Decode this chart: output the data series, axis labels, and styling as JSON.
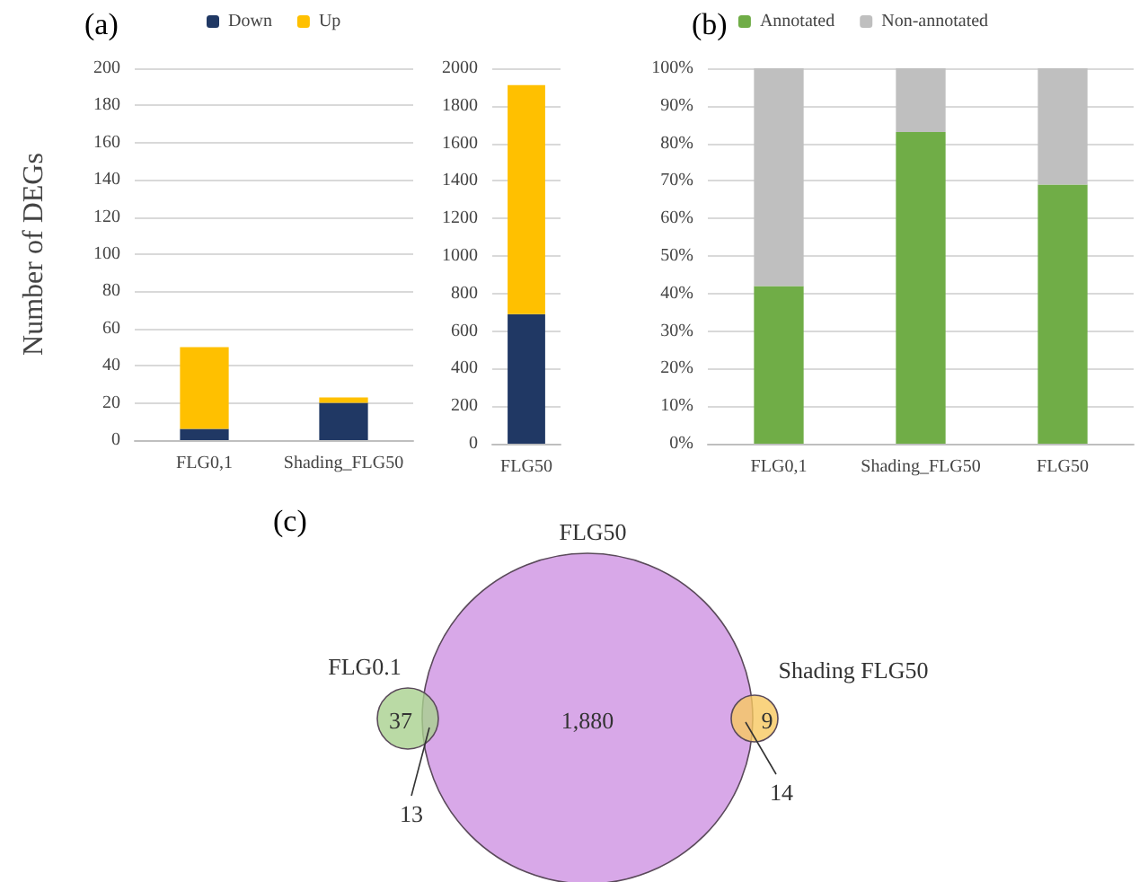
{
  "chart_data": [
    {
      "type": "bar",
      "title": "(a)",
      "ylabel": "Number of DEGs",
      "categories": [
        "FLG0,1",
        "Shading_FLG50"
      ],
      "stacked": true,
      "series": [
        {
          "name": "Down",
          "color": "#203864",
          "values": [
            6,
            20
          ]
        },
        {
          "name": "Up",
          "color": "#ffc000",
          "values": [
            44,
            3
          ]
        }
      ],
      "ylim": [
        0,
        200
      ],
      "yticks": [
        0,
        20,
        40,
        60,
        80,
        100,
        120,
        140,
        160,
        180,
        200
      ],
      "grid": "y",
      "legend": "top"
    },
    {
      "type": "bar",
      "categories": [
        "FLG50"
      ],
      "stacked": true,
      "series": [
        {
          "color": "#203864",
          "values": [
            690
          ]
        },
        {
          "color": "#ffc000",
          "values": [
            1220
          ]
        }
      ],
      "ylim": [
        0,
        2000
      ],
      "yticks": [
        0,
        200,
        400,
        600,
        800,
        1000,
        1200,
        1400,
        1600,
        1800,
        2000
      ],
      "grid": "y"
    },
    {
      "type": "bar",
      "title": "(b)",
      "categories": [
        "FLG0,1",
        "Shading_FLG50",
        "FLG50"
      ],
      "stacked": true,
      "series": [
        {
          "name": "Annotated",
          "color": "#70ad47",
          "values": [
            42,
            83,
            69
          ]
        },
        {
          "name": "Non-annotated",
          "color": "#bfbfbf",
          "values": [
            58,
            17,
            31
          ]
        }
      ],
      "ylim": [
        0,
        100
      ],
      "yticks": [
        {
          "value": 0,
          "label": "0%"
        },
        {
          "value": 10,
          "label": "10%"
        },
        {
          "value": 20,
          "label": "20%"
        },
        {
          "value": 30,
          "label": "30%"
        },
        {
          "value": 40,
          "label": "40%"
        },
        {
          "value": 50,
          "label": "50%"
        },
        {
          "value": 60,
          "label": "60%"
        },
        {
          "value": 70,
          "label": "70%"
        },
        {
          "value": 80,
          "label": "80%"
        },
        {
          "value": 90,
          "label": "90%"
        },
        {
          "value": 100,
          "label": "100%"
        }
      ],
      "grid": "y",
      "legend": "top"
    },
    {
      "type": "other",
      "title": "(c)",
      "categories": [
        "FLG0.1",
        "FLG50",
        "Shading FLG50"
      ],
      "colors": [
        "#a9d18e",
        "#d8a8e8",
        "#f8c860"
      ],
      "annotations": [
        "37",
        "13",
        "1,880",
        "14",
        "9"
      ]
    }
  ]
}
